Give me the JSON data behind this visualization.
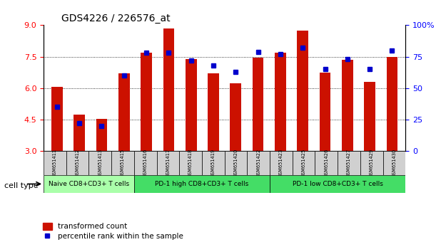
{
  "title": "GDS4226 / 226576_at",
  "samples": [
    "GSM651411",
    "GSM651412",
    "GSM651413",
    "GSM651415",
    "GSM651416",
    "GSM651417",
    "GSM651418",
    "GSM651419",
    "GSM651420",
    "GSM651422",
    "GSM651423",
    "GSM651425",
    "GSM651426",
    "GSM651427",
    "GSM651429",
    "GSM651430"
  ],
  "red_values": [
    6.05,
    4.75,
    4.55,
    6.7,
    7.7,
    8.85,
    7.4,
    6.7,
    6.25,
    7.45,
    7.7,
    8.75,
    6.75,
    7.35,
    6.3,
    7.5
  ],
  "blue_values": [
    35,
    22,
    20,
    60,
    78,
    78,
    72,
    68,
    63,
    79,
    77,
    82,
    65,
    73,
    65,
    80
  ],
  "cell_type_groups": [
    {
      "label": "Naive CD8+CD3+ T cells",
      "start": 0,
      "end": 4,
      "color": "#aaffaa"
    },
    {
      "label": "PD-1 high CD8+CD3+ T cells",
      "start": 4,
      "end": 10,
      "color": "#44dd66"
    },
    {
      "label": "PD-1 low CD8+CD3+ T cells",
      "start": 10,
      "end": 16,
      "color": "#44dd66"
    }
  ],
  "ylim_left": [
    3,
    9
  ],
  "ylim_right": [
    0,
    100
  ],
  "yticks_left": [
    3,
    4.5,
    6,
    7.5,
    9
  ],
  "yticks_right": [
    0,
    25,
    50,
    75,
    100
  ],
  "bar_color": "#cc1100",
  "dot_color": "#0000cc",
  "legend_red_label": "transformed count",
  "legend_blue_label": "percentile rank within the sample",
  "cell_type_label": "cell type",
  "bar_width": 0.5,
  "sample_box_color": "#d0d0d0"
}
